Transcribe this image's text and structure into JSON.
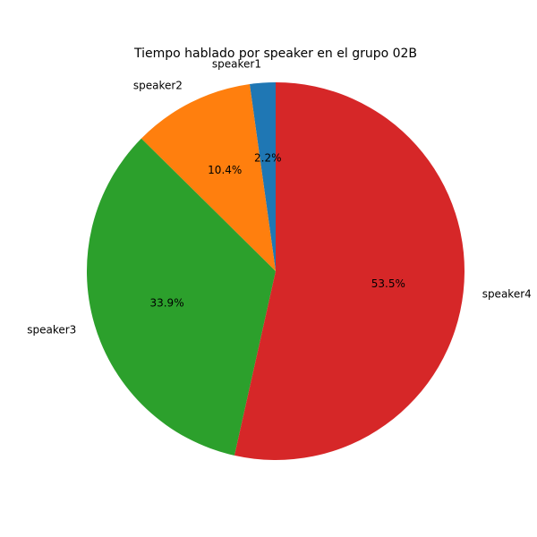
{
  "chart_data": {
    "type": "pie",
    "title": "Tiempo hablado por speaker en el grupo 02B",
    "start_angle_deg": 90,
    "direction": "counterclockwise",
    "legend": "none",
    "slices": [
      {
        "label": "speaker1",
        "value": 2.2,
        "pct_label": "2.2%",
        "color": "#1f77b4"
      },
      {
        "label": "speaker2",
        "value": 10.4,
        "pct_label": "10.4%",
        "color": "#ff7f0e"
      },
      {
        "label": "speaker3",
        "value": 33.9,
        "pct_label": "33.9%",
        "color": "#2ca02c"
      },
      {
        "label": "speaker4",
        "value": 53.5,
        "pct_label": "53.5%",
        "color": "#d62728"
      }
    ]
  }
}
